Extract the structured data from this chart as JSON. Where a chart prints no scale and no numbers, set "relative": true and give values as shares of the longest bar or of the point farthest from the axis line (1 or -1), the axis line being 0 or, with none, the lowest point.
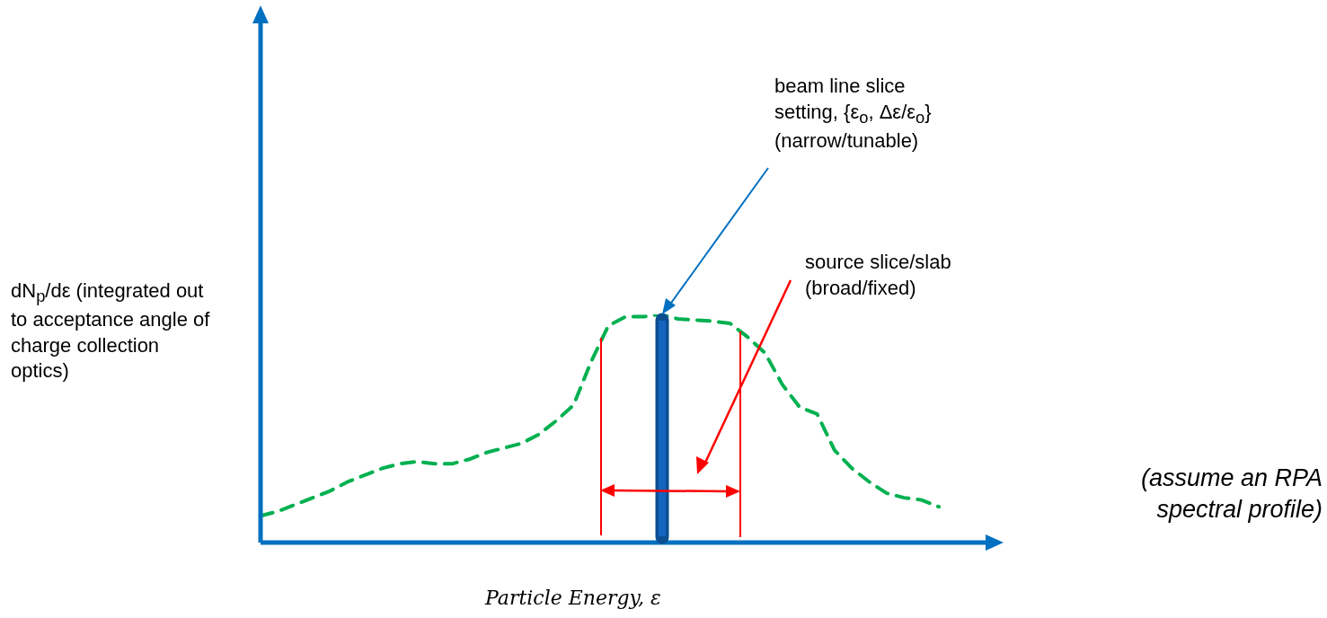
{
  "chart_data": {
    "type": "line",
    "relative": true,
    "xlabel": "Particle Energy, ε",
    "ylabel": "dN$_{p}$/dε (integrated out to acceptance angle of charge collection optics)",
    "categories": [
      null,
      null,
      null,
      null,
      null,
      null,
      null,
      null,
      null,
      null,
      null,
      null,
      null,
      null,
      null,
      null,
      null,
      null,
      null,
      null,
      null,
      null,
      null,
      null,
      null,
      null,
      null,
      null,
      null,
      null,
      null,
      null,
      null,
      null,
      null,
      null,
      null,
      null,
      null,
      null
    ],
    "series": [
      {
        "color": "#00b050",
        "line_style": "dashed",
        "values": [
          0.11,
          0.13,
          0.16,
          0.19,
          0.22,
          0.26,
          0.29,
          0.32,
          0.34,
          0.35,
          0.34,
          0.34,
          0.36,
          0.39,
          0.41,
          0.43,
          0.47,
          0.53,
          0.6,
          0.79,
          0.95,
          0.99,
          0.99,
          1,
          0.98,
          0.975,
          0.97,
          0.96,
          0.9,
          0.83,
          0.69,
          0.59,
          0.56,
          0.4,
          0.32,
          0.26,
          0.21,
          0.19,
          0.18,
          0.15
        ]
      }
    ],
    "marker": "none",
    "legend": false,
    "annotations": [
      "beam line slice setting, {ε$_{o}$, Δε/ε$_{o}$} (narrow/tunable)",
      "source slice/slab (broad/fixed)",
      "(assume an RPA spectral profile)"
    ]
  }
}
